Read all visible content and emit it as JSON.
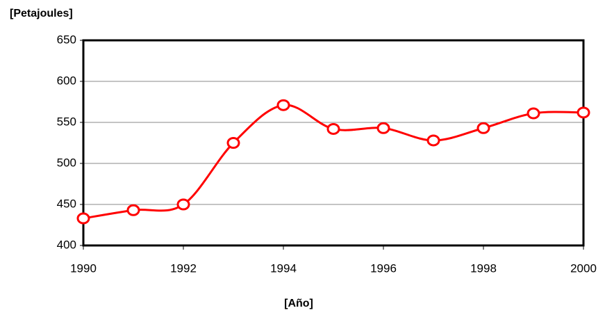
{
  "chart_data": {
    "type": "line",
    "title": "[Petajoules]",
    "x_label": "[Año]",
    "x": [
      1990,
      1991,
      1992,
      1993,
      1994,
      1995,
      1996,
      1997,
      1998,
      1999,
      2000
    ],
    "series": [
      {
        "name": "Petajoules",
        "color": "#ff0000",
        "values": [
          433,
          443,
          450,
          525,
          571,
          542,
          543,
          528,
          543,
          561,
          562
        ]
      }
    ],
    "xlim": [
      1990,
      2000
    ],
    "xticks": [
      1990,
      1992,
      1994,
      1996,
      1998,
      2000
    ],
    "ylim": [
      400,
      650
    ],
    "yticks": [
      400,
      450,
      500,
      550,
      600,
      650
    ],
    "grid": true
  }
}
